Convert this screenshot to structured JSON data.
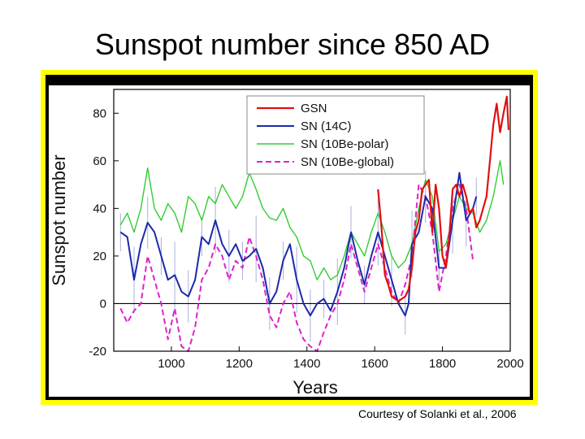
{
  "slide": {
    "title": "Sunspot number since 850 AD",
    "credit": "Courtesy of Solanki et al., 2006"
  },
  "colors": {
    "frame_yellow": "#ffff00",
    "frame_black": "#000000",
    "GSN": "#e01010",
    "SN_14C": "#1c2aa8",
    "SN_10Be_polar": "#33cc33",
    "SN_10Be_global": "#dd22cc",
    "error_bars": "#aab0dd"
  },
  "chart_data": {
    "type": "line",
    "title": "",
    "xlabel": "Years",
    "ylabel": "Sunspot number",
    "xlim": [
      830,
      2000
    ],
    "ylim": [
      -20,
      90
    ],
    "xticks": [
      1000,
      1200,
      1400,
      1600,
      1800,
      2000
    ],
    "yticks": [
      -20,
      0,
      20,
      40,
      60,
      80
    ],
    "grid": false,
    "zero_line": true,
    "legend_position": "top-center",
    "series": [
      {
        "name": "GSN",
        "style": "solid",
        "x": [
          1610,
          1620,
          1630,
          1640,
          1650,
          1660,
          1670,
          1680,
          1690,
          1700,
          1710,
          1720,
          1730,
          1740,
          1750,
          1760,
          1770,
          1780,
          1790,
          1800,
          1810,
          1820,
          1830,
          1840,
          1850,
          1860,
          1870,
          1880,
          1890,
          1900,
          1910,
          1920,
          1930,
          1940,
          1950,
          1960,
          1970,
          1980,
          1990,
          1995
        ],
        "y": [
          48,
          32,
          12,
          8,
          3,
          2,
          1,
          2,
          3,
          6,
          15,
          30,
          35,
          48,
          50,
          52,
          30,
          50,
          40,
          20,
          15,
          28,
          48,
          50,
          45,
          50,
          45,
          38,
          40,
          32,
          35,
          40,
          45,
          60,
          75,
          84,
          72,
          80,
          87,
          73
        ]
      },
      {
        "name": "SN (14C)",
        "style": "solid",
        "x": [
          850,
          870,
          890,
          910,
          930,
          950,
          970,
          990,
          1010,
          1030,
          1050,
          1070,
          1090,
          1110,
          1130,
          1150,
          1170,
          1190,
          1210,
          1230,
          1250,
          1270,
          1290,
          1310,
          1330,
          1350,
          1370,
          1390,
          1410,
          1430,
          1450,
          1470,
          1490,
          1510,
          1530,
          1550,
          1570,
          1590,
          1610,
          1630,
          1650,
          1670,
          1690,
          1700,
          1710,
          1730,
          1750,
          1770,
          1790,
          1810,
          1830,
          1850,
          1870,
          1890,
          1900
        ],
        "y": [
          30,
          28,
          10,
          25,
          34,
          30,
          20,
          10,
          12,
          5,
          3,
          10,
          28,
          25,
          35,
          25,
          20,
          25,
          18,
          20,
          23,
          15,
          0,
          5,
          18,
          25,
          10,
          0,
          -5,
          0,
          2,
          -3,
          5,
          15,
          30,
          18,
          8,
          20,
          30,
          20,
          10,
          0,
          -5,
          0,
          25,
          30,
          45,
          40,
          15,
          15,
          35,
          55,
          35,
          40,
          45
        ]
      },
      {
        "name": "SN (10Be-polar)",
        "style": "solid",
        "x": [
          850,
          870,
          890,
          910,
          930,
          950,
          970,
          990,
          1010,
          1030,
          1050,
          1070,
          1090,
          1110,
          1130,
          1150,
          1170,
          1190,
          1210,
          1230,
          1250,
          1270,
          1290,
          1310,
          1330,
          1350,
          1370,
          1390,
          1410,
          1430,
          1450,
          1470,
          1490,
          1510,
          1530,
          1550,
          1570,
          1590,
          1610,
          1630,
          1650,
          1670,
          1690,
          1710,
          1730,
          1750,
          1770,
          1790,
          1810,
          1830,
          1850,
          1870,
          1890,
          1910,
          1930,
          1950,
          1970,
          1980
        ],
        "y": [
          33,
          38,
          30,
          40,
          57,
          40,
          35,
          42,
          38,
          30,
          45,
          42,
          35,
          45,
          42,
          50,
          45,
          40,
          45,
          55,
          48,
          40,
          36,
          35,
          40,
          32,
          28,
          20,
          18,
          10,
          15,
          10,
          12,
          20,
          30,
          25,
          20,
          30,
          38,
          30,
          20,
          15,
          18,
          25,
          40,
          52,
          45,
          22,
          25,
          35,
          45,
          40,
          38,
          30,
          35,
          45,
          60,
          50
        ]
      },
      {
        "name": "SN (10Be-global)",
        "style": "dashed",
        "x": [
          850,
          870,
          890,
          910,
          930,
          950,
          970,
          990,
          1010,
          1030,
          1050,
          1070,
          1090,
          1110,
          1130,
          1150,
          1170,
          1190,
          1210,
          1230,
          1250,
          1270,
          1290,
          1310,
          1330,
          1350,
          1370,
          1390,
          1410,
          1430,
          1450,
          1470,
          1490,
          1510,
          1530,
          1550,
          1570,
          1590,
          1610,
          1630,
          1650,
          1670,
          1690,
          1710,
          1730,
          1750,
          1770,
          1790,
          1810,
          1830,
          1850,
          1870,
          1890
        ],
        "y": [
          -2,
          -8,
          -3,
          0,
          20,
          10,
          0,
          -15,
          -2,
          -18,
          -20,
          -10,
          10,
          15,
          25,
          20,
          10,
          18,
          15,
          28,
          20,
          10,
          -5,
          -10,
          0,
          5,
          -8,
          -15,
          -18,
          -20,
          -12,
          -5,
          0,
          10,
          25,
          15,
          5,
          15,
          25,
          15,
          5,
          0,
          8,
          20,
          50,
          45,
          30,
          5,
          20,
          40,
          50,
          40,
          18
        ]
      }
    ]
  }
}
